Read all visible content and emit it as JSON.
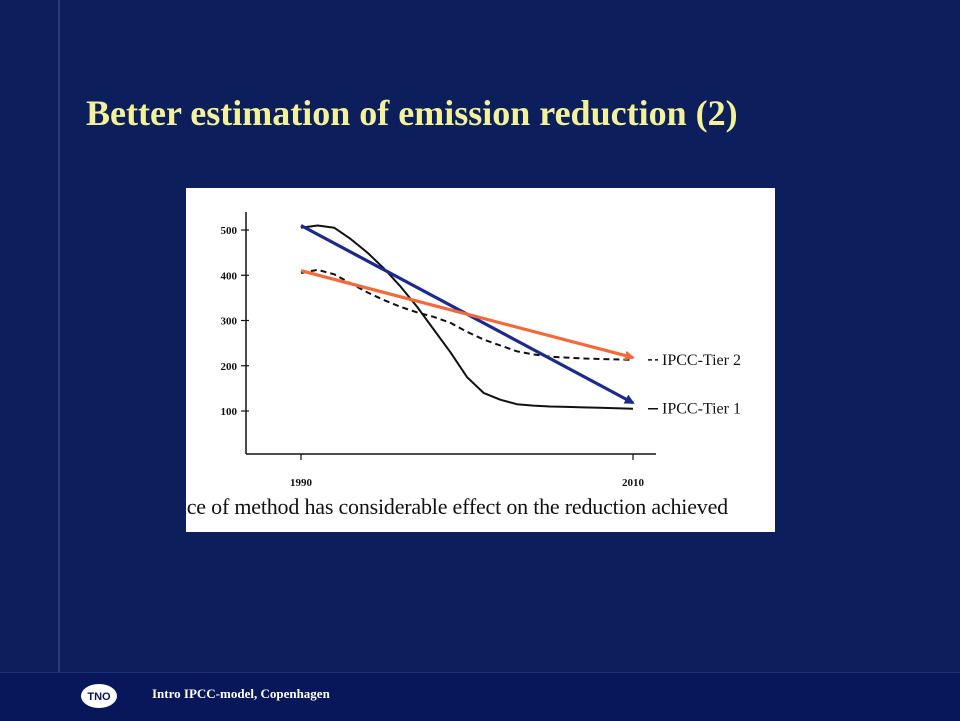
{
  "slide": {
    "title": "Better estimation of emission reduction (2)",
    "figure_caption": "oice of method has considerable effect on the reduction achieved",
    "footer_text": "Intro IPCC-model, Copenhagen",
    "logo_text": "TNO"
  },
  "colors": {
    "background": "#0c1f5c",
    "title": "#f3f29a",
    "tier1_arrow": "#1b2a8c",
    "tier2_arrow": "#f26a3a",
    "curve": "#111111"
  },
  "chart_data": {
    "type": "line",
    "title": "",
    "xlabel": "",
    "ylabel": "",
    "xlim": [
      1989,
      2011
    ],
    "ylim": [
      0,
      520
    ],
    "x_ticks": [
      1990,
      2010
    ],
    "y_ticks": [
      100,
      200,
      300,
      400,
      500
    ],
    "series": [
      {
        "name": "IPCC-Tier 1",
        "style": "solid",
        "x": [
          1990,
          1991,
          1992,
          1993,
          1994,
          1995,
          1996,
          1997,
          1998,
          1999,
          2000,
          2001,
          2002,
          2003,
          2004,
          2005,
          2006,
          2007,
          2008,
          2009,
          2010
        ],
        "y": [
          505,
          510,
          505,
          480,
          450,
          415,
          375,
          330,
          280,
          230,
          175,
          140,
          125,
          115,
          112,
          110,
          109,
          108,
          107,
          106,
          105
        ]
      },
      {
        "name": "IPCC-Tier 2",
        "style": "dashed",
        "x": [
          1990,
          1991,
          1992,
          1993,
          1994,
          1995,
          1996,
          1997,
          1998,
          1999,
          2000,
          2001,
          2002,
          2003,
          2004,
          2005,
          2006,
          2007,
          2008,
          2009,
          2010
        ],
        "y": [
          405,
          412,
          402,
          382,
          362,
          345,
          330,
          318,
          308,
          295,
          275,
          258,
          245,
          232,
          225,
          220,
          218,
          216,
          215,
          214,
          213
        ]
      }
    ],
    "trend_arrows": [
      {
        "series": "IPCC-Tier 1",
        "from": [
          1990,
          510
        ],
        "to": [
          2010,
          118
        ],
        "color": "#1b2a8c"
      },
      {
        "series": "IPCC-Tier 2",
        "from": [
          1990,
          410
        ],
        "to": [
          2010,
          218
        ],
        "color": "#f26a3a"
      }
    ]
  }
}
